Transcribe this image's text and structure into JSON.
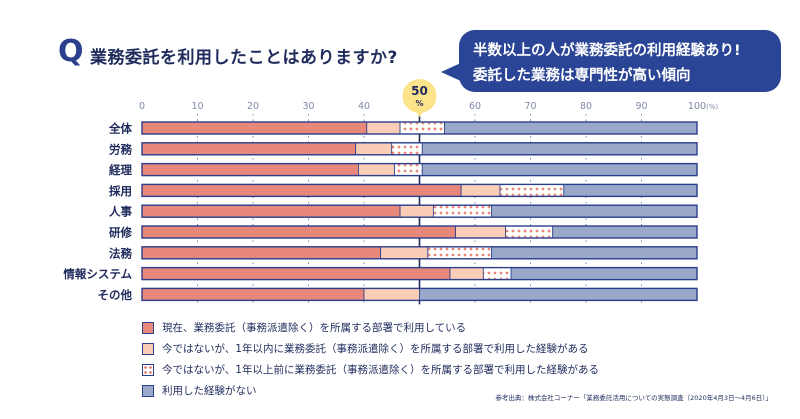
{
  "header": {
    "q_mark": "Q",
    "question": "業務委託を利用したことはありますか?"
  },
  "bubble": {
    "line1": "半数以上の人が業務委託の利用経験あり!",
    "line2": "委託した業務は専門性が高い傾向"
  },
  "marker": {
    "value": "50",
    "unit": "%"
  },
  "colors": {
    "current": "#e8887a",
    "within1y": "#f9cdb6",
    "over1y_dots": "#e8887a",
    "never": "#9aa9c9",
    "frame": "#2b3f8c",
    "grid": "#7f8aa8"
  },
  "chart_data": {
    "type": "bar",
    "orientation": "horizontal",
    "stacked": true,
    "unit_label": "(%)",
    "xlim": [
      0,
      100
    ],
    "xticks": [
      0,
      10,
      20,
      30,
      40,
      50,
      60,
      70,
      80,
      90,
      100
    ],
    "reference_line": 50,
    "categories": [
      "全体",
      "労務",
      "経理",
      "採用",
      "人事",
      "研修",
      "法務",
      "情報システム",
      "その他"
    ],
    "series": [
      {
        "key": "current",
        "name": "現在、業務委託（事務派遣除く）を所属する部署で利用している",
        "values": [
          40.5,
          38.5,
          39,
          57.5,
          46.5,
          56.5,
          43,
          55.5,
          40
        ]
      },
      {
        "key": "within1y",
        "name": "今ではないが、1年以内に業務委託（事務派遣除く）を所属する部署で利用した経験がある",
        "values": [
          6,
          6.5,
          6.5,
          7,
          6,
          9,
          8.5,
          6,
          10
        ]
      },
      {
        "key": "over1y",
        "name": "今ではないが、1年以上前に業務委託（事務派遣除く）を所属する部署で利用した経験がある",
        "values": [
          8,
          5.5,
          5,
          11.5,
          10.5,
          8.5,
          11.5,
          5,
          0
        ]
      },
      {
        "key": "never",
        "name": "利用した経験がない",
        "values": [
          45.5,
          49.5,
          49.5,
          24,
          37,
          26,
          37,
          33.5,
          50
        ]
      }
    ]
  },
  "source": "参考出典：株式会社コーナー「業務委託活用についての実態調査（2020年4月3日〜4月6日）」"
}
